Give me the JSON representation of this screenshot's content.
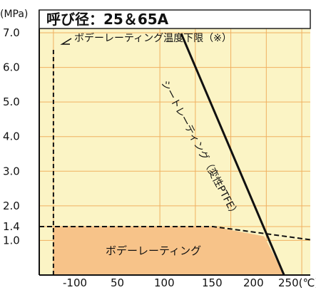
{
  "chart_data": {
    "type": "line",
    "title": "呼び径：25＆65A",
    "ylabel": "(MPa)",
    "xlabel": "250(℃)",
    "xlim": [
      -120,
      262
    ],
    "ylim": [
      0,
      7.0
    ],
    "x_ticks": [
      -100,
      50,
      100,
      150,
      200,
      250
    ],
    "x_tick_labels": [
      "-100",
      "50",
      "100",
      "150",
      "200",
      "250(℃)"
    ],
    "y_ticks": [
      1.0,
      1.4,
      2.0,
      3.0,
      4.0,
      5.0,
      6.0,
      7.0
    ],
    "y_tick_labels": [
      "1.0",
      "1.4",
      "2.0",
      "3.0",
      "4.0",
      "5.0",
      "6.0",
      "7.0"
    ],
    "grid": true,
    "colors": {
      "plot_background": "#fbf4c5",
      "gridline": "#f0b060",
      "fill_area": "#f7c389",
      "line": "#111111",
      "axis": "#111111",
      "text": "#111111"
    },
    "series": [
      {
        "name": "シートレーティング（変性PTFE）",
        "style": "solid",
        "x": [
          80,
          225
        ],
        "y": [
          6.98,
          0.0
        ]
      },
      {
        "name": "ボデーレーティング",
        "style": "dashed",
        "x": [
          -120,
          -100,
          125,
          262
        ],
        "y": [
          1.4,
          1.4,
          1.4,
          1.02
        ]
      },
      {
        "name": "ボデーレーティング温度下限（※）",
        "style": "dashed",
        "x": [
          -100,
          -100
        ],
        "y": [
          0.0,
          6.55
        ]
      }
    ],
    "shaded_region": {
      "label": "ボデーレーティング",
      "x": [
        -100,
        -100,
        125,
        197,
        225
      ],
      "y": [
        0.0,
        1.4,
        1.4,
        1.12,
        0.0
      ]
    },
    "annotations": [
      {
        "text": "ボデーレーティング温度下限（※）"
      },
      {
        "text": "シートレーティング（変性PTFE）"
      },
      {
        "text": "ボデーレーティング"
      }
    ]
  }
}
